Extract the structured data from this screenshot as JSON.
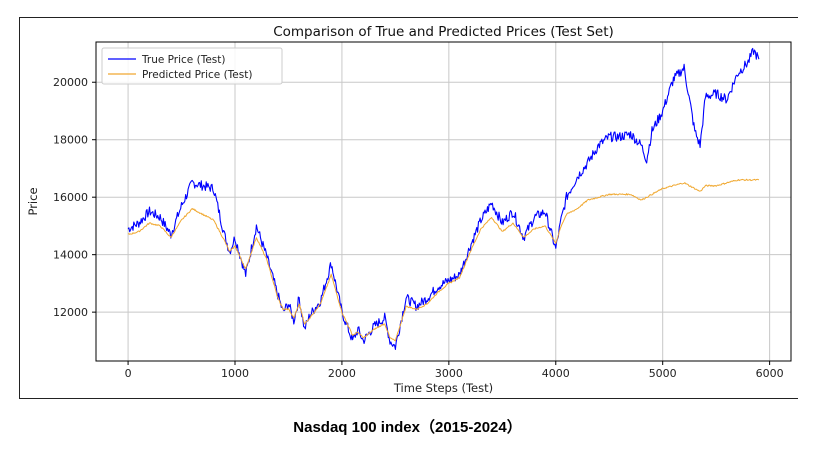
{
  "caption": "Nasdaq 100 index（2015-2024）",
  "chart_data": {
    "type": "line",
    "title": "Comparison of True and Predicted Prices (Test Set)",
    "xlabel": "Time Steps (Test)",
    "ylabel": "Price",
    "xlim": [
      -300,
      6200
    ],
    "ylim": [
      10300,
      21400
    ],
    "xticks": [
      0,
      1000,
      2000,
      3000,
      4000,
      5000,
      6000
    ],
    "yticks": [
      12000,
      14000,
      16000,
      18000,
      20000
    ],
    "xtick_labels": [
      "0",
      "1000",
      "2000",
      "3000",
      "4000",
      "5000",
      "6000"
    ],
    "ytick_labels": [
      "12000",
      "14000",
      "16000",
      "18000",
      "20000"
    ],
    "grid": true,
    "legend_position": "top-left",
    "series": [
      {
        "name": "True Price (Test)",
        "color": "#0000ff",
        "x": [
          0,
          100,
          200,
          300,
          400,
          500,
          600,
          700,
          800,
          900,
          950,
          1000,
          1100,
          1200,
          1300,
          1400,
          1450,
          1500,
          1550,
          1600,
          1650,
          1700,
          1800,
          1900,
          2000,
          2100,
          2150,
          2200,
          2300,
          2400,
          2450,
          2500,
          2600,
          2700,
          2800,
          2900,
          3000,
          3100,
          3200,
          3300,
          3400,
          3500,
          3600,
          3700,
          3800,
          3900,
          4000,
          4050,
          4100,
          4200,
          4300,
          4400,
          4500,
          4600,
          4700,
          4800,
          4850,
          4900,
          5000,
          5100,
          5200,
          5300,
          5350,
          5400,
          5500,
          5600,
          5700,
          5800,
          5850,
          5900
        ],
        "y": [
          14900,
          15100,
          15500,
          15300,
          14700,
          15700,
          16500,
          16400,
          16300,
          14700,
          14100,
          14600,
          13300,
          15000,
          13900,
          12600,
          12000,
          12300,
          11700,
          12500,
          11400,
          11900,
          12400,
          13700,
          12000,
          11000,
          11400,
          11000,
          11500,
          11800,
          11000,
          10800,
          12500,
          12200,
          12500,
          12900,
          13100,
          13300,
          14300,
          15200,
          15800,
          15100,
          15500,
          14600,
          15300,
          15500,
          14200,
          15200,
          16000,
          16700,
          17200,
          17800,
          18100,
          18100,
          18200,
          17800,
          17300,
          18300,
          19000,
          20100,
          20500,
          18300,
          17800,
          19500,
          19600,
          19400,
          20300,
          20700,
          21100,
          20800
        ]
      },
      {
        "name": "Predicted Price (Test)",
        "color": "#f0a830",
        "x": [
          0,
          100,
          200,
          300,
          400,
          500,
          600,
          700,
          800,
          900,
          950,
          1000,
          1100,
          1200,
          1300,
          1400,
          1450,
          1500,
          1550,
          1600,
          1650,
          1700,
          1800,
          1900,
          2000,
          2100,
          2150,
          2200,
          2300,
          2400,
          2450,
          2500,
          2600,
          2700,
          2800,
          2900,
          3000,
          3100,
          3200,
          3300,
          3400,
          3500,
          3600,
          3700,
          3800,
          3900,
          4000,
          4050,
          4100,
          4200,
          4300,
          4400,
          4500,
          4600,
          4700,
          4800,
          4850,
          4900,
          5000,
          5100,
          5200,
          5300,
          5350,
          5400,
          5500,
          5600,
          5700,
          5800,
          5850,
          5900
        ],
        "y": [
          14700,
          14800,
          15100,
          15000,
          14600,
          15200,
          15600,
          15400,
          15200,
          14500,
          14100,
          14300,
          13500,
          14600,
          13800,
          12500,
          12100,
          12100,
          11800,
          12300,
          11600,
          11800,
          12300,
          13300,
          12000,
          11200,
          11300,
          11100,
          11400,
          11600,
          11100,
          11000,
          12200,
          12100,
          12300,
          12700,
          13000,
          13200,
          14100,
          14900,
          15300,
          14800,
          15100,
          14600,
          14900,
          15000,
          14400,
          15000,
          15400,
          15600,
          15900,
          16000,
          16100,
          16100,
          16100,
          15900,
          16000,
          16100,
          16300,
          16400,
          16500,
          16300,
          16200,
          16400,
          16400,
          16500,
          16600,
          16600,
          16600,
          16600
        ]
      }
    ]
  }
}
